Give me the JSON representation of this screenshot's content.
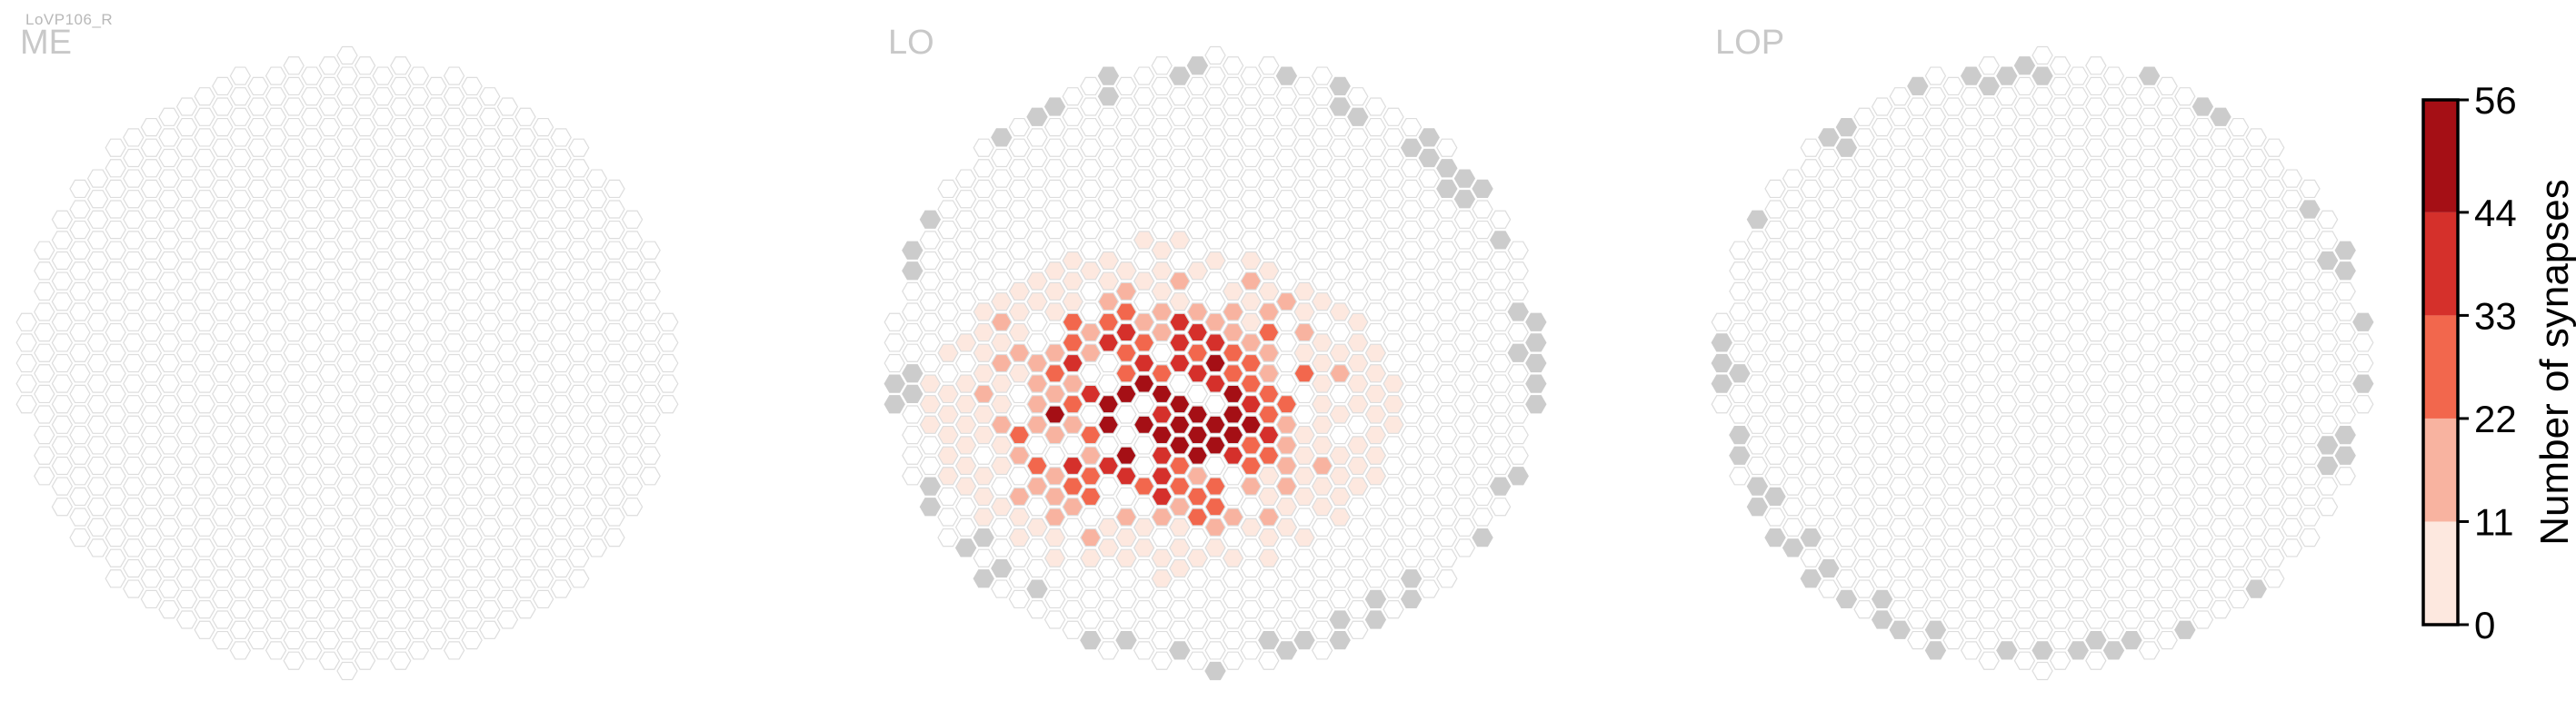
{
  "figure_id": "LoVP106_R",
  "chart_data": {
    "type": "heatmap",
    "panels": [
      {
        "label": "ME",
        "max_row": 16,
        "value_rule": "none",
        "dark_edge": false
      },
      {
        "label": "LO",
        "max_row": 16,
        "value_rule": "lo",
        "dark_edge": true
      },
      {
        "label": "LOP",
        "max_row": 16,
        "value_rule": "none",
        "dark_edge": true
      }
    ],
    "colorbar": {
      "title": "Number of synapses",
      "ticks": [
        0,
        11,
        22,
        33,
        44,
        56
      ],
      "tick_labels": [
        "0",
        "11",
        "22",
        "33",
        "44",
        "56"
      ],
      "range": [
        0,
        56
      ],
      "bin_colors": [
        "#fde8df",
        "#f8b3a0",
        "#f2674d",
        "#d5302b",
        "#a50f15"
      ]
    },
    "colors": {
      "empty_fill": "#ffffff",
      "empty_stroke": "#dddddd",
      "edge_fill": "#cccccc",
      "label_color": "#c8c8c8"
    }
  }
}
